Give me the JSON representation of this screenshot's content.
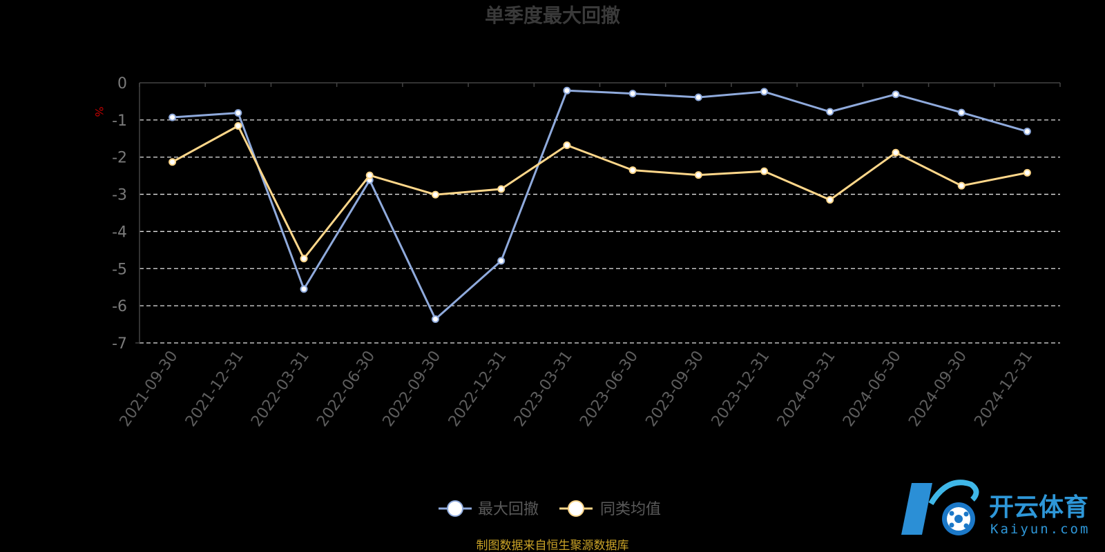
{
  "chart_data": {
    "type": "line",
    "title": "单季度最大回撤",
    "unit": "%",
    "categories": [
      "2021-09-30",
      "2021-12-31",
      "2022-03-31",
      "2022-06-30",
      "2022-09-30",
      "2022-12-31",
      "2023-03-31",
      "2023-06-30",
      "2023-09-30",
      "2023-12-31",
      "2024-03-31",
      "2024-06-30",
      "2024-09-30",
      "2024-12-31"
    ],
    "yticks": [
      "0",
      "-1",
      "-2",
      "-3",
      "-4",
      "-5",
      "-6",
      "-7"
    ],
    "ylim": [
      -7,
      0
    ],
    "grid": true,
    "legend_position": "bottom-center",
    "series": [
      {
        "name": "最大回撤",
        "color": "#8faadc",
        "values": [
          -0.93,
          -0.81,
          -5.55,
          -2.62,
          -6.36,
          -4.79,
          -0.21,
          -0.29,
          -0.39,
          -0.24,
          -0.78,
          -0.31,
          -0.8,
          -1.31
        ]
      },
      {
        "name": "同类均值",
        "color": "#ffd78a",
        "values": [
          -2.13,
          -1.16,
          -4.73,
          -2.49,
          -3.01,
          -2.86,
          -1.68,
          -2.35,
          -2.48,
          -2.38,
          -3.15,
          -1.88,
          -2.77,
          -2.42
        ]
      }
    ]
  },
  "footer": {
    "source": "制图数据来自恒生聚源数据库"
  },
  "logo": {
    "main": "开云体育",
    "sub": "Kaiyun.com"
  }
}
